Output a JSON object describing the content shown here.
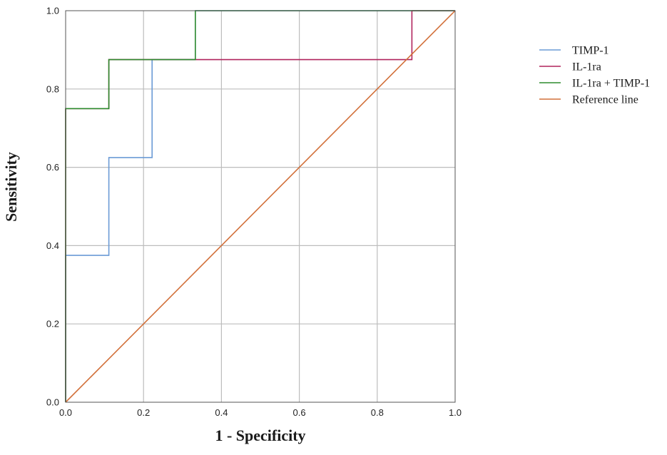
{
  "chart_data": {
    "type": "line",
    "xlabel": "1 - Specificity",
    "ylabel": "Sensitivity",
    "xlim": [
      0,
      1
    ],
    "ylim": [
      0,
      1
    ],
    "x_ticks": [
      "0.0",
      "0.2",
      "0.4",
      "0.6",
      "0.8",
      "1.0"
    ],
    "y_ticks": [
      "0.0",
      "0.2",
      "0.4",
      "0.6",
      "0.8",
      "1.0"
    ],
    "grid": true,
    "legend_position": "right",
    "series": [
      {
        "name": "TIMP-1",
        "color": "#6b9bd6",
        "step": true,
        "points": [
          [
            0,
            0
          ],
          [
            0,
            0.375
          ],
          [
            0.111,
            0.375
          ],
          [
            0.111,
            0.625
          ],
          [
            0.222,
            0.625
          ],
          [
            0.222,
            0.875
          ],
          [
            0.333,
            0.875
          ],
          [
            0.333,
            1.0
          ],
          [
            1.0,
            1.0
          ]
        ]
      },
      {
        "name": "IL-1ra",
        "color": "#b0245c",
        "step": true,
        "points": [
          [
            0,
            0
          ],
          [
            0,
            0.75
          ],
          [
            0.111,
            0.75
          ],
          [
            0.111,
            0.875
          ],
          [
            0.889,
            0.875
          ],
          [
            0.889,
            1.0
          ],
          [
            1.0,
            1.0
          ]
        ]
      },
      {
        "name": "IL-1ra + TIMP-1",
        "color": "#2e8b2e",
        "step": true,
        "points": [
          [
            0,
            0
          ],
          [
            0,
            0.75
          ],
          [
            0.111,
            0.75
          ],
          [
            0.111,
            0.875
          ],
          [
            0.333,
            0.875
          ],
          [
            0.333,
            1.0
          ],
          [
            1.0,
            1.0
          ]
        ]
      },
      {
        "name": "Reference line",
        "color": "#d2703a",
        "step": false,
        "points": [
          [
            0,
            0
          ],
          [
            1,
            1
          ]
        ]
      }
    ]
  }
}
